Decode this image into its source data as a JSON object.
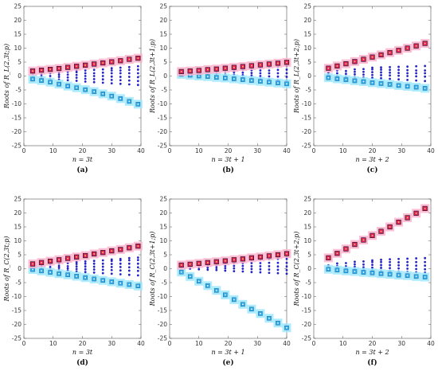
{
  "chart_data": [
    {
      "type": "scatter",
      "panel_label": "(a)",
      "ylabel": "Roots of  R_L(2,3t;p)",
      "xlabel": "n = 3t",
      "xlim": [
        0,
        40
      ],
      "ylim": [
        -25,
        25
      ],
      "xticks": [
        0,
        10,
        20,
        30,
        40
      ],
      "yticks": [
        25,
        20,
        15,
        10,
        5,
        0,
        -5,
        -10,
        -15,
        -20,
        -25
      ],
      "x": [
        3,
        6,
        9,
        12,
        15,
        18,
        21,
        24,
        27,
        30,
        33,
        36,
        39
      ],
      "max_root": [
        1.8,
        2.1,
        2.4,
        2.7,
        3.1,
        3.5,
        3.9,
        4.3,
        4.7,
        5.1,
        5.5,
        6.0,
        6.4
      ],
      "min_root": [
        -1.1,
        -1.6,
        -2.2,
        -2.9,
        -3.6,
        -4.2,
        -4.9,
        -5.6,
        -6.4,
        -7.2,
        -8.1,
        -9.1,
        -10.1
      ],
      "inner_roots": [
        [
          -0.5,
          0.5
        ],
        [
          -0.7,
          0,
          0.7
        ],
        [
          -1,
          0,
          1
        ],
        [
          -1.3,
          -0.3,
          0.5,
          1.3
        ],
        [
          -1.5,
          -0.5,
          0.5,
          1.5
        ],
        [
          -1.7,
          -0.6,
          0.4,
          1.4,
          2
        ],
        [
          -2,
          -1,
          0,
          1,
          2
        ],
        [
          -2.2,
          -1.1,
          0,
          1,
          2.2
        ],
        [
          -2.4,
          -1.2,
          0,
          1.2,
          2.4
        ],
        [
          -2.6,
          -1.4,
          -0.2,
          1,
          2,
          2.8
        ],
        [
          -2.8,
          -1.5,
          -0.3,
          1,
          2,
          3
        ],
        [
          -3,
          -1.6,
          -0.3,
          1,
          2.2,
          3.2
        ],
        [
          -3.2,
          -1.8,
          -0.4,
          1,
          2.3,
          3.5
        ]
      ]
    },
    {
      "type": "scatter",
      "panel_label": "(b)",
      "ylabel": "Roots of  R_L(2,3t+1;p)",
      "xlabel": "n = 3t + 1",
      "xlim": [
        0,
        40
      ],
      "ylim": [
        -25,
        25
      ],
      "xticks": [
        0,
        10,
        20,
        30,
        40
      ],
      "yticks": [
        25,
        20,
        15,
        10,
        5,
        0,
        -5,
        -10,
        -15,
        -20,
        -25
      ],
      "x": [
        4,
        7,
        10,
        13,
        16,
        19,
        22,
        25,
        28,
        31,
        34,
        37,
        40
      ],
      "max_root": [
        1.6,
        1.8,
        2.0,
        2.3,
        2.5,
        2.8,
        3.1,
        3.4,
        3.7,
        4.0,
        4.3,
        4.6,
        4.9
      ],
      "min_root": [
        0.6,
        0.3,
        0.0,
        -0.2,
        -0.5,
        -0.7,
        -1.0,
        -1.3,
        -1.6,
        -1.9,
        -2.2,
        -2.5,
        -2.8
      ],
      "inner_roots": [
        [
          1
        ],
        [
          0.8,
          1.3
        ],
        [
          0.5,
          1.2
        ],
        [
          0.3,
          1,
          1.6
        ],
        [
          0,
          0.8,
          1.6
        ],
        [
          -0.2,
          0.6,
          1.5,
          2.1
        ],
        [
          -0.4,
          0.5,
          1.4,
          2.3
        ],
        [
          -0.6,
          0.3,
          1.2,
          2.2
        ],
        [
          -0.8,
          0.2,
          1.1,
          2.1,
          2.8
        ],
        [
          -1,
          0,
          1,
          2,
          3
        ],
        [
          -1.2,
          -0.1,
          1,
          2,
          3.2
        ],
        [
          -1.4,
          -0.2,
          1,
          2.2,
          3.4
        ],
        [
          -1.6,
          -0.3,
          1,
          2.3,
          3.6
        ]
      ]
    },
    {
      "type": "scatter",
      "panel_label": "(c)",
      "ylabel": "Roots of  R_L(2,3t+2;p)",
      "xlabel": "n = 3t + 2",
      "xlim": [
        0,
        40
      ],
      "ylim": [
        -25,
        25
      ],
      "xticks": [
        0,
        10,
        20,
        30,
        40
      ],
      "yticks": [
        25,
        20,
        15,
        10,
        5,
        0,
        -5,
        -10,
        -15,
        -20,
        -25
      ],
      "x": [
        5,
        8,
        11,
        14,
        17,
        20,
        23,
        26,
        29,
        32,
        35,
        38
      ],
      "max_root": [
        2.8,
        3.6,
        4.4,
        5.2,
        6.0,
        6.8,
        7.6,
        8.4,
        9.2,
        10.0,
        10.8,
        11.7
      ],
      "min_root": [
        -0.6,
        -1.0,
        -1.3,
        -1.7,
        -2.0,
        -2.4,
        -2.7,
        -3.0,
        -3.4,
        -3.7,
        -4.0,
        -4.4
      ],
      "inner_roots": [
        [
          0.3,
          1.2
        ],
        [
          0,
          1,
          2
        ],
        [
          -0.2,
          0.8,
          1.8
        ],
        [
          -0.4,
          0.6,
          1.5,
          2.4
        ],
        [
          -0.5,
          0.5,
          1.5,
          2.5
        ],
        [
          -0.6,
          0.4,
          1.4,
          2.4,
          3
        ],
        [
          -0.8,
          0.3,
          1.3,
          2.3,
          3.1
        ],
        [
          -1,
          0.2,
          1.2,
          2.2,
          3.2
        ],
        [
          -1.2,
          0.1,
          1.1,
          2.2,
          3.3
        ],
        [
          -1.4,
          0,
          1,
          2.1,
          3.4
        ],
        [
          -1.6,
          -0.1,
          1,
          2,
          3.5
        ],
        [
          -1.8,
          -0.2,
          1,
          2,
          3.6
        ]
      ]
    },
    {
      "type": "scatter",
      "panel_label": "(d)",
      "ylabel": "Roots of  R_C(2,3t;p)",
      "xlabel": "n = 3t",
      "xlim": [
        0,
        40
      ],
      "ylim": [
        -25,
        25
      ],
      "xticks": [
        0,
        10,
        20,
        30,
        40
      ],
      "yticks": [
        25,
        20,
        15,
        10,
        5,
        0,
        -5,
        -10,
        -15,
        -20,
        -25
      ],
      "x": [
        3,
        6,
        9,
        12,
        15,
        18,
        21,
        24,
        27,
        30,
        33,
        36,
        39
      ],
      "max_root": [
        1.7,
        2.2,
        2.7,
        3.2,
        3.7,
        4.2,
        4.7,
        5.3,
        5.8,
        6.4,
        6.9,
        7.5,
        8.1
      ],
      "min_root": [
        -0.3,
        -0.8,
        -1.3,
        -1.8,
        -2.2,
        -2.7,
        -3.2,
        -3.7,
        -4.2,
        -4.7,
        -5.2,
        -5.7,
        -6.2
      ],
      "inner_roots": [
        [
          0.5,
          1
        ],
        [
          0,
          1,
          1.6
        ],
        [
          -0.3,
          0.6,
          1.5
        ],
        [
          -0.5,
          0.3,
          1,
          1.9
        ],
        [
          -0.7,
          0.1,
          0.9,
          2
        ],
        [
          -1,
          -0.1,
          0.8,
          1.7,
          2.4
        ],
        [
          -1.2,
          -0.2,
          0.8,
          1.8,
          2.6
        ],
        [
          -1.4,
          -0.3,
          0.7,
          1.8,
          2.8
        ],
        [
          -1.6,
          -0.4,
          0.7,
          1.8,
          3
        ],
        [
          -1.8,
          -0.5,
          0.6,
          1.7,
          2.8,
          3.3
        ],
        [
          -2,
          -0.6,
          0.6,
          1.8,
          3,
          3.5
        ],
        [
          -2.2,
          -0.7,
          0.5,
          1.8,
          3,
          3.8
        ],
        [
          -2.4,
          -0.8,
          0.5,
          1.8,
          3.1,
          4
        ]
      ]
    },
    {
      "type": "scatter",
      "panel_label": "(e)",
      "ylabel": "Roots of  R_C(2,3t+1;p)",
      "xlabel": "n = 3t + 1",
      "xlim": [
        0,
        40
      ],
      "ylim": [
        -25,
        25
      ],
      "xticks": [
        0,
        10,
        20,
        30,
        40
      ],
      "yticks": [
        25,
        20,
        15,
        10,
        5,
        0,
        -5,
        -10,
        -15,
        -20,
        -25
      ],
      "x": [
        4,
        7,
        10,
        13,
        16,
        19,
        22,
        25,
        28,
        31,
        34,
        37,
        40
      ],
      "max_root": [
        1.3,
        1.6,
        1.9,
        2.2,
        2.5,
        2.8,
        3.2,
        3.5,
        3.9,
        4.2,
        4.6,
        5.0,
        5.4
      ],
      "min_root": [
        -1.2,
        -2.8,
        -4.5,
        -6.1,
        -7.8,
        -9.4,
        -11.1,
        -12.8,
        -14.5,
        -16.1,
        -17.8,
        -19.5,
        -21.2
      ],
      "inner_roots": [
        [
          0.2,
          0.8
        ],
        [
          0,
          0.7,
          1.2
        ],
        [
          -0.2,
          0.6,
          1.4
        ],
        [
          -0.4,
          0.4,
          1.2,
          1.8
        ],
        [
          -0.5,
          0.3,
          1.1,
          2
        ],
        [
          -0.7,
          0.2,
          1,
          1.9,
          2.4
        ],
        [
          -0.9,
          0.1,
          1,
          2,
          2.6
        ],
        [
          -1,
          0,
          1,
          2,
          2.9
        ],
        [
          -1.2,
          -0.1,
          0.9,
          2,
          3.1
        ],
        [
          -1.3,
          -0.2,
          0.9,
          2,
          3.2
        ],
        [
          -1.5,
          -0.3,
          0.9,
          2.1,
          3.4
        ],
        [
          -1.6,
          -0.4,
          0.8,
          2.1,
          3.5,
          4
        ],
        [
          -1.8,
          -0.5,
          0.8,
          2.1,
          3.5,
          4.3
        ]
      ]
    },
    {
      "type": "scatter",
      "panel_label": "(f)",
      "ylabel": "Roots of  R_C(2,3t+2;p)",
      "xlabel": "n = 3t + 2",
      "xlim": [
        0,
        40
      ],
      "ylim": [
        -25,
        25
      ],
      "xticks": [
        0,
        10,
        20,
        30,
        40
      ],
      "yticks": [
        25,
        20,
        15,
        10,
        5,
        0,
        -5,
        -10,
        -15,
        -20,
        -25
      ],
      "x": [
        5,
        8,
        11,
        14,
        17,
        20,
        23,
        26,
        29,
        32,
        35,
        38
      ],
      "max_root": [
        3.9,
        5.5,
        7.1,
        8.7,
        10.3,
        11.9,
        13.4,
        15.0,
        16.7,
        18.3,
        19.9,
        21.6
      ],
      "min_root": [
        -0.2,
        -0.5,
        -0.8,
        -1.0,
        -1.3,
        -1.5,
        -1.8,
        -2.0,
        -2.3,
        -2.5,
        -2.8,
        -3.0
      ],
      "inner_roots": [
        [
          0.5,
          1.2
        ],
        [
          0.2,
          1,
          1.9
        ],
        [
          0,
          0.9,
          2
        ],
        [
          -0.2,
          0.7,
          1.6,
          2.5
        ],
        [
          -0.4,
          0.5,
          1.5,
          2.6
        ],
        [
          -0.5,
          0.4,
          1.4,
          2.4,
          3
        ],
        [
          -0.7,
          0.3,
          1.3,
          2.4,
          3.2
        ],
        [
          -0.8,
          0.2,
          1.3,
          2.4,
          3.4
        ],
        [
          -1,
          0.1,
          1.2,
          2.3,
          3.5
        ],
        [
          -1.1,
          0,
          1.2,
          2.4,
          3.6
        ],
        [
          -1.3,
          -0.1,
          1.1,
          2.4,
          3.7
        ],
        [
          -1.4,
          -0.2,
          1.1,
          2.4,
          3.8
        ]
      ]
    }
  ],
  "colors": {
    "max_marker": "#e02262",
    "max_halo": "#ffb3cf",
    "min_marker": "#2fa9e8",
    "min_halo": "#9fe8ff",
    "inner_dot": "#2323c8",
    "frame": "#555555"
  }
}
